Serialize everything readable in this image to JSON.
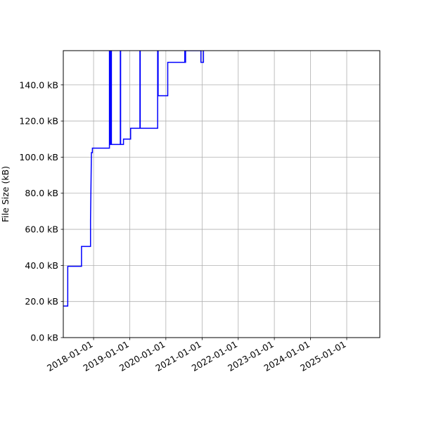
{
  "chart_data": {
    "type": "line",
    "title": "",
    "xlabel": "",
    "ylabel": "File Size (kB)",
    "grid": true,
    "legend": "none",
    "line_color": "#0000ff",
    "x_range": [
      "2017-03-01",
      "2025-12-01"
    ],
    "y_range_kb": [
      0,
      159
    ],
    "x_ticks": [
      "2018-01-01",
      "2019-01-01",
      "2020-01-01",
      "2021-01-01",
      "2022-01-01",
      "2023-01-01",
      "2024-01-01",
      "2025-01-01"
    ],
    "y_ticks": [
      0,
      20,
      40,
      60,
      80,
      100,
      120,
      140
    ],
    "y_tick_labels": [
      "0.0 kB",
      "20.0 kB",
      "40.0 kB",
      "60.0 kB",
      "80.0 kB",
      "100.0 kB",
      "120.0 kB",
      "140.0 kB"
    ],
    "series": [
      {
        "style": "step",
        "x": [
          "2017-03-01",
          "2017-04-15",
          "2017-04-15",
          "2017-09-01",
          "2017-09-01",
          "2017-12-01",
          "2017-12-01",
          "2017-12-10",
          "2017-12-10",
          "2017-12-20",
          "2017-12-20",
          "2018-01-05",
          "2018-01-05",
          "2018-06-10",
          "2018-06-10",
          "2018-06-14",
          "2018-06-14",
          "2018-06-18",
          "2018-06-18",
          "2018-06-22",
          "2018-06-22",
          "2018-06-26",
          "2018-06-26",
          "2018-06-30",
          "2018-06-30",
          "2018-07-04",
          "2018-07-04",
          "2018-09-28",
          "2018-09-28",
          "2018-10-01",
          "2018-10-01",
          "2018-10-30",
          "2018-10-30",
          "2019-01-10",
          "2019-01-10",
          "2019-04-14",
          "2019-04-14",
          "2019-04-17",
          "2019-04-17",
          "2019-10-10",
          "2019-10-10",
          "2019-10-15",
          "2019-10-15",
          "2020-01-20",
          "2020-01-20",
          "2020-07-10",
          "2020-07-10",
          "2020-07-14",
          "2020-07-14",
          "2020-07-18",
          "2020-07-18",
          "2020-12-20",
          "2020-12-20",
          "2020-12-24",
          "2020-12-24",
          "2021-01-15",
          "2021-01-15",
          "2021-01-20"
        ],
        "y_kb": [
          17.5,
          17.5,
          39.5,
          39.5,
          50.5,
          50.5,
          65.0,
          102.5,
          102.5,
          102.5,
          105.0,
          105.0,
          105.0,
          105.0,
          159.0,
          159.0,
          107.0,
          107.0,
          159.0,
          159.0,
          107.0,
          107.0,
          159.0,
          159.0,
          107.0,
          107.0,
          107.0,
          107.0,
          159.0,
          159.0,
          107.0,
          107.0,
          110.0,
          110.0,
          116.0,
          116.0,
          159.0,
          159.0,
          116.0,
          116.0,
          159.0,
          159.0,
          134.0,
          134.0,
          152.5,
          152.5,
          159.0,
          159.0,
          152.5,
          152.5,
          159.0,
          159.0,
          152.5,
          152.5,
          152.5,
          152.5,
          159.0,
          159.0
        ]
      }
    ]
  }
}
